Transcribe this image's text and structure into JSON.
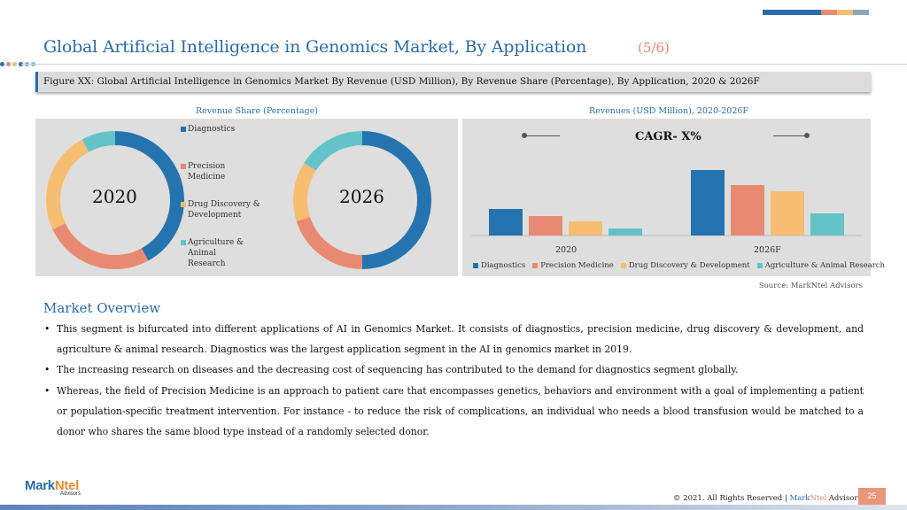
{
  "header": {
    "title": "Global Artificial Intelligence in Genomics Market, By Application",
    "page_indicator": "(5/6)"
  },
  "colors": {
    "diagnostics": "#2574b0",
    "precision_medicine": "#e88a72",
    "drug_discovery": "#f7bd73",
    "agriculture": "#63c3c8",
    "accent_blue": "#2a6ca8",
    "accent_orange": "#e2836c"
  },
  "figure": {
    "caption": "Figure XX: Global Artificial Intelligence in Genomics Market By Revenue (USD Million), By Revenue Share (Percentage), By Application, 2020 & 2026F"
  },
  "left_panel": {
    "label": "Revenue Share (Percentage)",
    "legend": [
      "Diagnostics",
      "Precision Medicine",
      "Drug Discovery & Development",
      "Agriculture & Animal Research"
    ]
  },
  "right_panel": {
    "label": "Revenues (USD Million), 2020-2026F",
    "cagr": "CAGR- X%",
    "legend": [
      "Diagnostics",
      "Precision Medicine",
      "Drug Discovery & Development",
      "Agriculture & Animal Research"
    ]
  },
  "chart_data": [
    {
      "type": "pie",
      "title": "2020",
      "categories": [
        "Diagnostics",
        "Precision Medicine",
        "Drug Discovery & Development",
        "Agriculture & Animal Research"
      ],
      "values": [
        42,
        26,
        24,
        8
      ]
    },
    {
      "type": "pie",
      "title": "2026",
      "categories": [
        "Diagnostics",
        "Precision Medicine",
        "Drug Discovery & Development",
        "Agriculture & Animal Research"
      ],
      "values": [
        50,
        20,
        14,
        16
      ]
    },
    {
      "type": "bar",
      "categories": [
        "2020",
        "2026F"
      ],
      "series": [
        {
          "name": "Diagnostics",
          "values": [
            30,
            74
          ]
        },
        {
          "name": "Precision Medicine",
          "values": [
            22,
            57
          ]
        },
        {
          "name": "Drug Discovery & Development",
          "values": [
            16,
            50
          ]
        },
        {
          "name": "Agriculture & Animal Research",
          "values": [
            8,
            25
          ]
        }
      ],
      "ylim": [
        0,
        80
      ],
      "grid": false,
      "legend_position": "bottom"
    }
  ],
  "source": "Source: MarkNtel Advisors",
  "market_overview": {
    "heading": "Market Overview",
    "bullets": [
      "This segment is bifurcated into different applications of AI in Genomics Market. It consists of diagnostics, precision medicine, drug discovery & development, and agriculture & animal research. Diagnostics was the largest application segment in the AI in genomics market in 2019.",
      "The increasing research on diseases and the decreasing cost of sequencing has contributed to the demand for diagnostics segment globally.",
      "Whereas, the field of Precision Medicine is an approach to patient care that encompasses genetics, behaviors and environment with a goal of implementing a patient or population-specific treatment intervention. For instance - to reduce the risk of complications, an individual who needs a blood transfusion would be matched to a donor who shares the same blood type instead of a randomly selected donor."
    ]
  },
  "footer": {
    "logo_part1": "Mark",
    "logo_part2": "Ntel",
    "logo_sub": "Advisors",
    "copyright_prefix": "© 2021. All Rights Reserved | ",
    "copyright_brand1": "Mark",
    "copyright_brand2": "Ntel",
    "copyright_suffix": " Advisors",
    "page_number": "25"
  }
}
